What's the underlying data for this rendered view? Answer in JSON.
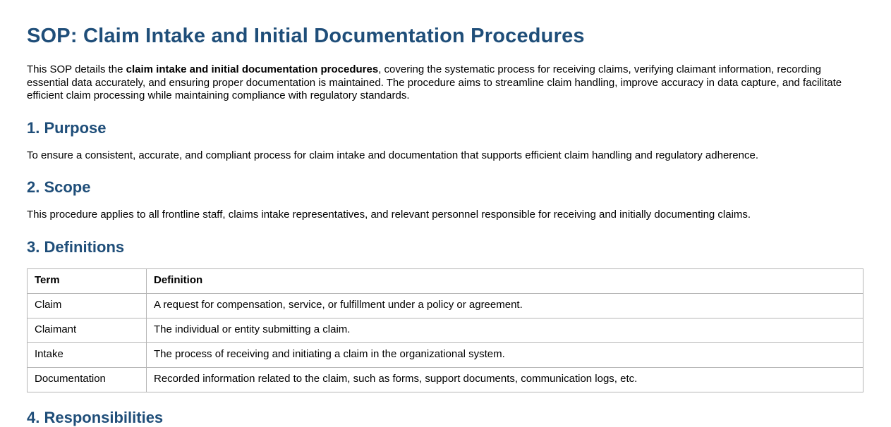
{
  "document": {
    "title": "SOP: Claim Intake and Initial Documentation Procedures",
    "intro": {
      "prefix": "This SOP details the ",
      "bold_phrase": "claim intake and initial documentation procedures",
      "suffix": ", covering the systematic process for receiving claims, verifying claimant information, recording essential data accurately, and ensuring proper documentation is maintained. The procedure aims to streamline claim handling, improve accuracy in data capture, and facilitate efficient claim processing while maintaining compliance with regulatory standards."
    },
    "sections": {
      "purpose": {
        "heading": "1. Purpose",
        "body": "To ensure a consistent, accurate, and compliant process for claim intake and documentation that supports efficient claim handling and regulatory adherence."
      },
      "scope": {
        "heading": "2. Scope",
        "body": "This procedure applies to all frontline staff, claims intake representatives, and relevant personnel responsible for receiving and initially documenting claims."
      },
      "definitions": {
        "heading": "3. Definitions"
      },
      "responsibilities": {
        "heading": "4. Responsibilities"
      }
    },
    "definitions_table": {
      "headers": [
        "Term",
        "Definition"
      ],
      "rows": [
        [
          "Claim",
          "A request for compensation, service, or fulfillment under a policy or agreement."
        ],
        [
          "Claimant",
          "The individual or entity submitting a claim."
        ],
        [
          "Intake",
          "The process of receiving and initiating a claim in the organizational system."
        ],
        [
          "Documentation",
          "Recorded information related to the claim, such as forms, support documents, communication logs, etc."
        ]
      ]
    },
    "colors": {
      "heading": "#1f4e79",
      "body_text": "#000000",
      "table_border": "#b5b5b5"
    }
  }
}
